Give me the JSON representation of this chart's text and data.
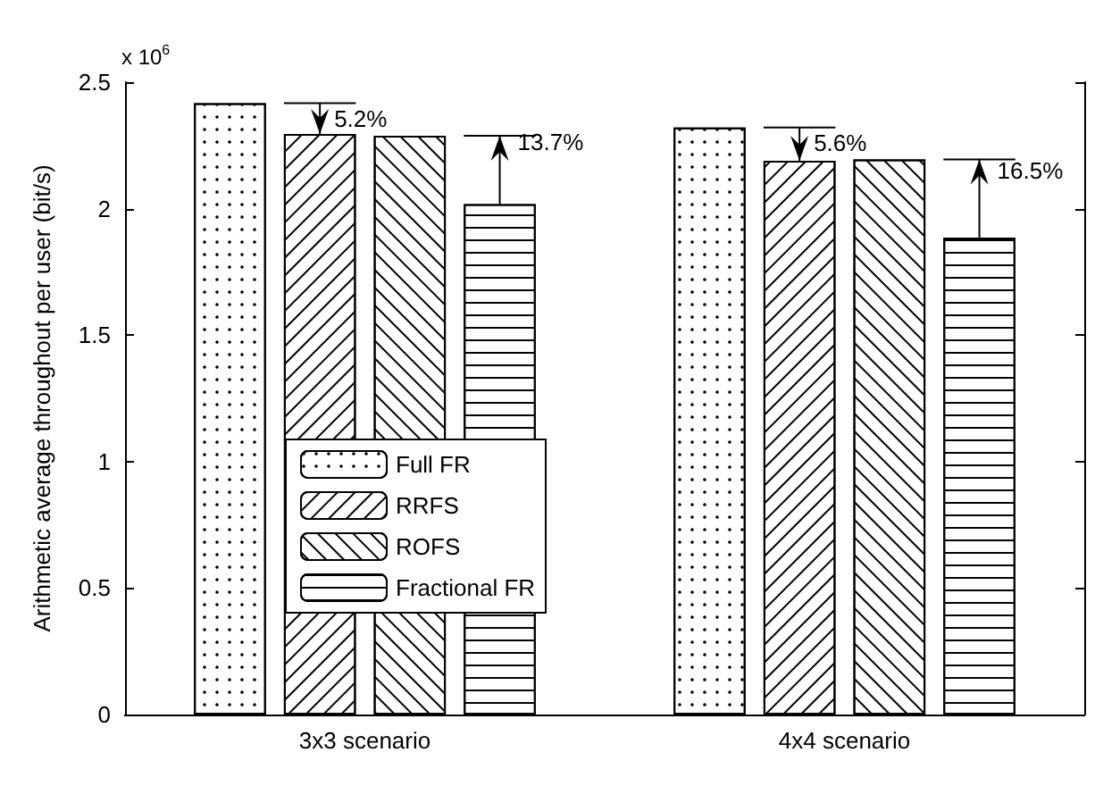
{
  "chart_data": {
    "type": "bar",
    "ylabel": "Arithmetic average throughout per user (bit/s)",
    "categories": [
      "3x3 scenario",
      "4x4 scenario"
    ],
    "series": [
      {
        "name": "Full FR",
        "color": "#ffffff",
        "values": [
          2.417,
          2.321
        ]
      },
      {
        "name": "RRFS",
        "color": "#ffffff",
        "values": [
          2.295,
          2.189
        ]
      },
      {
        "name": "ROFS",
        "color": "#ffffff",
        "values": [
          2.288,
          2.195
        ]
      },
      {
        "name": "Fractional FR",
        "color": "#ffffff",
        "values": [
          2.018,
          1.886
        ]
      }
    ],
    "ylim": [
      0,
      2.5
    ],
    "yticks": [
      0,
      0.5,
      1,
      1.5,
      2,
      2.5
    ],
    "grid": false,
    "legend": "center left",
    "annotations": [
      "x 10$^{6}$",
      "5.2%",
      "13.7%",
      "5.6%",
      "16.5%"
    ]
  }
}
